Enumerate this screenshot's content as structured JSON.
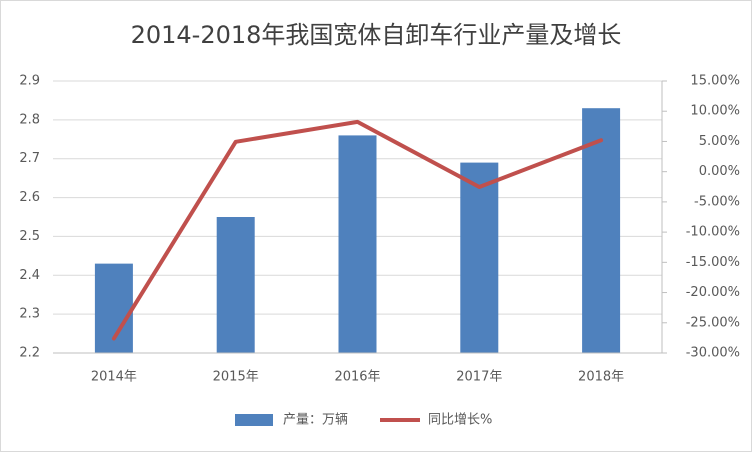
{
  "chart_data": {
    "type": "bar",
    "title": "2014-2018年我国宽体自卸车行业产量及增长",
    "categories": [
      "2014年",
      "2015年",
      "2016年",
      "2017年",
      "2018年"
    ],
    "series": [
      {
        "name": "产量：万辆",
        "type": "bar",
        "color": "#4f81bd",
        "values": [
          2.43,
          2.55,
          2.76,
          2.69,
          2.83
        ]
      },
      {
        "name": "同比增长%",
        "type": "line",
        "axis": "y2",
        "color": "#c0504d",
        "values": [
          -27.6,
          4.94,
          8.24,
          -2.54,
          5.2
        ]
      }
    ],
    "ylim": [
      2.2,
      2.9
    ],
    "yticks": [
      2.2,
      2.3,
      2.4,
      2.5,
      2.6,
      2.7,
      2.8,
      2.9
    ],
    "y2lim": [
      -30,
      15
    ],
    "y2ticks": [
      {
        "value": -30,
        "label": "-30.00%"
      },
      {
        "value": -25,
        "label": "-25.00%"
      },
      {
        "value": -20,
        "label": "-20.00%"
      },
      {
        "value": -15,
        "label": "-15.00%"
      },
      {
        "value": -10,
        "label": "-10.00%"
      },
      {
        "value": -5,
        "label": "-5.00%"
      },
      {
        "value": 0,
        "label": "0.00%"
      },
      {
        "value": 5,
        "label": "5.00%"
      },
      {
        "value": 10,
        "label": "10.00%"
      },
      {
        "value": 15,
        "label": "15.00%"
      }
    ],
    "grid": true,
    "legend": "bottom"
  }
}
